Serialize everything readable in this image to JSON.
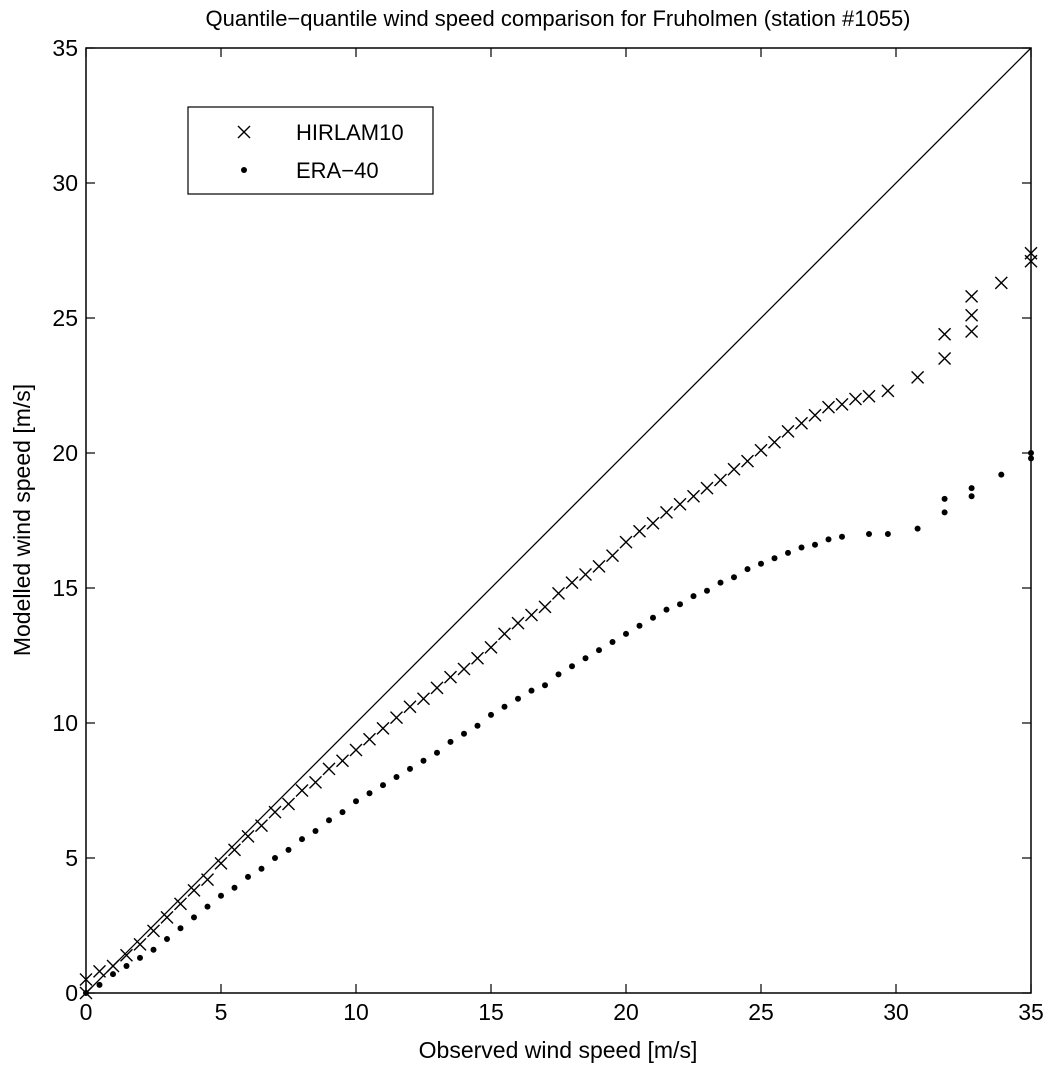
{
  "chart_data": {
    "type": "scatter",
    "title": "Quantile−quantile wind speed comparison for Fruholmen (station #1055)",
    "xlabel": "Observed wind speed [m/s]",
    "ylabel": "Modelled wind speed [m/s]",
    "xlim": [
      0,
      35
    ],
    "ylim": [
      0,
      35
    ],
    "xticks": [
      0,
      5,
      10,
      15,
      20,
      25,
      30,
      35
    ],
    "yticks": [
      0,
      5,
      10,
      15,
      20,
      25,
      30,
      35
    ],
    "grid": false,
    "legend": "upper left",
    "series": [
      {
        "name": "HIRLAM10",
        "color": "#000000",
        "marker": "x",
        "x": [
          0,
          0,
          0.5,
          1,
          1.5,
          2,
          2.5,
          3,
          3.5,
          4,
          4.5,
          5,
          5.5,
          6,
          6.5,
          7,
          7.5,
          8,
          8.5,
          9,
          9.5,
          10,
          10.5,
          11,
          11.5,
          12,
          12.5,
          13,
          13.5,
          14,
          14.5,
          15,
          15.5,
          16,
          16.5,
          17,
          17.5,
          18,
          18.5,
          19,
          19.5,
          20,
          20.5,
          21,
          21.5,
          22,
          22.5,
          23,
          23.5,
          24,
          24.5,
          25,
          25.5,
          26,
          26.5,
          27,
          27.5,
          28,
          28.5,
          29,
          29.7,
          30.8,
          31.8,
          31.8,
          32.8,
          32.8,
          32.8,
          33.9,
          35,
          35
        ],
        "values": [
          0,
          0.5,
          0.8,
          1.0,
          1.4,
          1.8,
          2.3,
          2.8,
          3.3,
          3.8,
          4.2,
          4.8,
          5.3,
          5.8,
          6.2,
          6.7,
          7.0,
          7.5,
          7.8,
          8.3,
          8.6,
          9.0,
          9.4,
          9.8,
          10.2,
          10.6,
          10.9,
          11.3,
          11.7,
          12.0,
          12.4,
          12.8,
          13.3,
          13.7,
          14.0,
          14.3,
          14.8,
          15.2,
          15.5,
          15.8,
          16.2,
          16.7,
          17.1,
          17.4,
          17.8,
          18.1,
          18.4,
          18.7,
          19.0,
          19.4,
          19.7,
          20.1,
          20.4,
          20.8,
          21.1,
          21.4,
          21.7,
          21.8,
          22.0,
          22.1,
          22.3,
          22.8,
          23.5,
          24.4,
          24.5,
          25.1,
          25.8,
          26.3,
          27.1,
          27.4
        ]
      },
      {
        "name": "ERA−40",
        "color": "#000000",
        "marker": "dot",
        "x": [
          0,
          0.5,
          1,
          1.5,
          2,
          2.5,
          3,
          3.5,
          4,
          4.5,
          5,
          5.5,
          6,
          6.5,
          7,
          7.5,
          8,
          8.5,
          9,
          9.5,
          10,
          10.5,
          11,
          11.5,
          12,
          12.5,
          13,
          13.5,
          14,
          14.5,
          15,
          15.5,
          16,
          16.5,
          17,
          17.5,
          18,
          18.5,
          19,
          19.5,
          20,
          20.5,
          21,
          21.5,
          22,
          22.5,
          23,
          23.5,
          24,
          24.5,
          25,
          25.5,
          26,
          26.5,
          27,
          27.5,
          28,
          29,
          29.7,
          30.8,
          31.8,
          31.8,
          32.8,
          32.8,
          33.9,
          35,
          35
        ],
        "values": [
          0,
          0.3,
          0.7,
          1.0,
          1.3,
          1.6,
          2.0,
          2.4,
          2.8,
          3.2,
          3.6,
          3.9,
          4.3,
          4.6,
          5.0,
          5.3,
          5.7,
          6.0,
          6.4,
          6.7,
          7.1,
          7.4,
          7.7,
          8.0,
          8.3,
          8.6,
          8.9,
          9.3,
          9.6,
          9.9,
          10.3,
          10.6,
          10.9,
          11.2,
          11.4,
          11.8,
          12.1,
          12.4,
          12.7,
          13.0,
          13.3,
          13.6,
          13.9,
          14.2,
          14.4,
          14.7,
          14.9,
          15.2,
          15.4,
          15.7,
          15.9,
          16.1,
          16.3,
          16.5,
          16.6,
          16.8,
          16.9,
          17.0,
          17.0,
          17.2,
          17.8,
          18.3,
          18.4,
          18.7,
          19.2,
          19.8,
          20.0
        ]
      }
    ]
  }
}
